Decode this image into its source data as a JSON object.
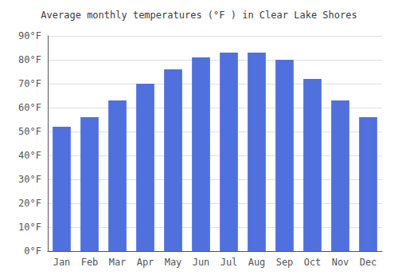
{
  "chart_data": {
    "type": "bar",
    "title": "Average monthly temperatures (°F ) in Clear Lake Shores",
    "categories": [
      "Jan",
      "Feb",
      "Mar",
      "Apr",
      "May",
      "Jun",
      "Jul",
      "Aug",
      "Sep",
      "Oct",
      "Nov",
      "Dec"
    ],
    "values": [
      52,
      56,
      63,
      70,
      76,
      81,
      83,
      83,
      80,
      72,
      63,
      56
    ],
    "ylim": [
      0,
      90
    ],
    "yticks": [
      {
        "value": 0,
        "label": "0°F"
      },
      {
        "value": 10,
        "label": "10°F"
      },
      {
        "value": 20,
        "label": "20°F"
      },
      {
        "value": 30,
        "label": "30°F"
      },
      {
        "value": 40,
        "label": "40°F"
      },
      {
        "value": 50,
        "label": "50°F"
      },
      {
        "value": 60,
        "label": "60°F"
      },
      {
        "value": 70,
        "label": "70°F"
      },
      {
        "value": 80,
        "label": "80°F"
      },
      {
        "value": 90,
        "label": "90°F"
      }
    ],
    "grid": true
  }
}
